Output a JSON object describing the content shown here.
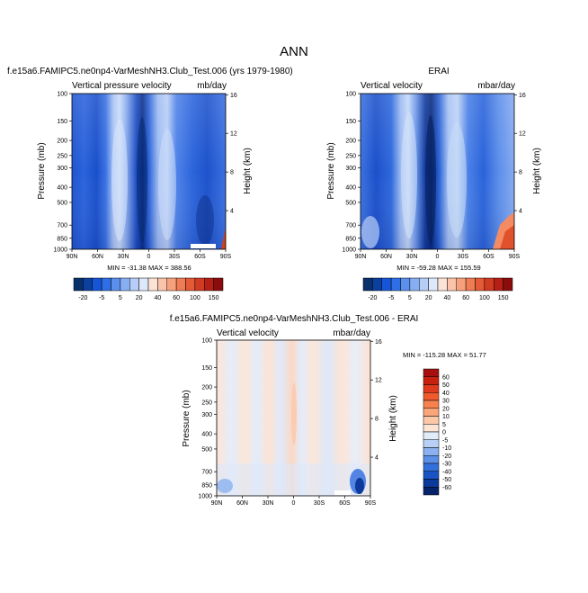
{
  "title": "ANN",
  "panels": [
    {
      "id": "test",
      "header": "f.e15a6.FAMIPC5.ne0np4-VarMeshNH3.Club_Test.006 (yrs 1979-1980)",
      "left_label": "Vertical pressure velocity",
      "units": "mb/day",
      "minmax": "MIN = -31.38   MAX = 388.56"
    },
    {
      "id": "obs",
      "header": "ERAI",
      "left_label": "Vertical velocity",
      "units": "mbar/day",
      "minmax": "MIN = -59.28   MAX = 155.59"
    },
    {
      "id": "diff",
      "header": "f.e15a6.FAMIPC5.ne0np4-VarMeshNH3.Club_Test.006 - ERAI",
      "left_label": "Vertical velocity",
      "units": "mbar/day",
      "minmax": "MIN = -115.28   MAX =  51.77"
    }
  ],
  "axes": {
    "ylabel": "Pressure (mb)",
    "y2label": "Height (km)",
    "pressure_ticks": [
      "100",
      "150",
      "200",
      "250",
      "300",
      "400",
      "500",
      "700",
      "850",
      "1000"
    ],
    "height_ticks": [
      "16",
      "12",
      "8",
      "4"
    ],
    "lat_ticks": [
      "90N",
      "60N",
      "30N",
      "0",
      "30S",
      "60S",
      "90S"
    ]
  },
  "colorbar_top": {
    "labels": [
      "-20",
      "-5",
      "5",
      "20",
      "40",
      "60",
      "100",
      "150"
    ],
    "colors": [
      "#08306b",
      "#0b3fa0",
      "#1656d6",
      "#2f6fe6",
      "#5a8fee",
      "#86aff3",
      "#b5cdf7",
      "#dde9fb",
      "#fde3d6",
      "#fbc4aa",
      "#f7a07b",
      "#f07c55",
      "#e45a36",
      "#d03b22",
      "#b51f16",
      "#8c0c0c"
    ]
  },
  "colorbar_diff": {
    "labels": [
      "60",
      "50",
      "40",
      "30",
      "20",
      "10",
      "5",
      "0",
      "-5",
      "-10",
      "-20",
      "-30",
      "-40",
      "-50",
      "-60"
    ],
    "colors": [
      "#a50f0f",
      "#c8200f",
      "#df3a1e",
      "#f05a2d",
      "#f7824f",
      "#fba57a",
      "#fdc8a8",
      "#fde5d6",
      "#e1ecfb",
      "#b9d0f6",
      "#8bb1f0",
      "#5c8fe8",
      "#3470dc",
      "#1a54c4",
      "#0c3a9a",
      "#06226b"
    ]
  },
  "chart_data": [
    {
      "type": "heatmap",
      "title": "f.e15a6.FAMIPC5.ne0np4-VarMeshNH3.Club_Test.006 (yrs 1979-1980)",
      "xlabel": "",
      "ylabel": "Pressure (mb)",
      "y2label": "Height (km)",
      "x_ticks": [
        "90N",
        "60N",
        "30N",
        "0",
        "30S",
        "60S",
        "90S"
      ],
      "y_range": [
        1000,
        100
      ],
      "min": -31.38,
      "max": 388.56,
      "units": "mb/day"
    },
    {
      "type": "heatmap",
      "title": "ERAI",
      "ylabel": "Pressure (mb)",
      "y2label": "Height (km)",
      "x_ticks": [
        "90N",
        "60N",
        "30N",
        "0",
        "30S",
        "60S",
        "90S"
      ],
      "y_range": [
        1000,
        100
      ],
      "min": -59.28,
      "max": 155.59,
      "units": "mbar/day"
    },
    {
      "type": "heatmap",
      "title": "f.e15a6.FAMIPC5.ne0np4-VarMeshNH3.Club_Test.006 - ERAI",
      "ylabel": "Pressure (mb)",
      "y2label": "Height (km)",
      "x_ticks": [
        "90N",
        "60N",
        "30N",
        "0",
        "30S",
        "60S",
        "90S"
      ],
      "y_range": [
        1000,
        100
      ],
      "min": -115.28,
      "max": 51.77,
      "units": "mbar/day"
    }
  ]
}
